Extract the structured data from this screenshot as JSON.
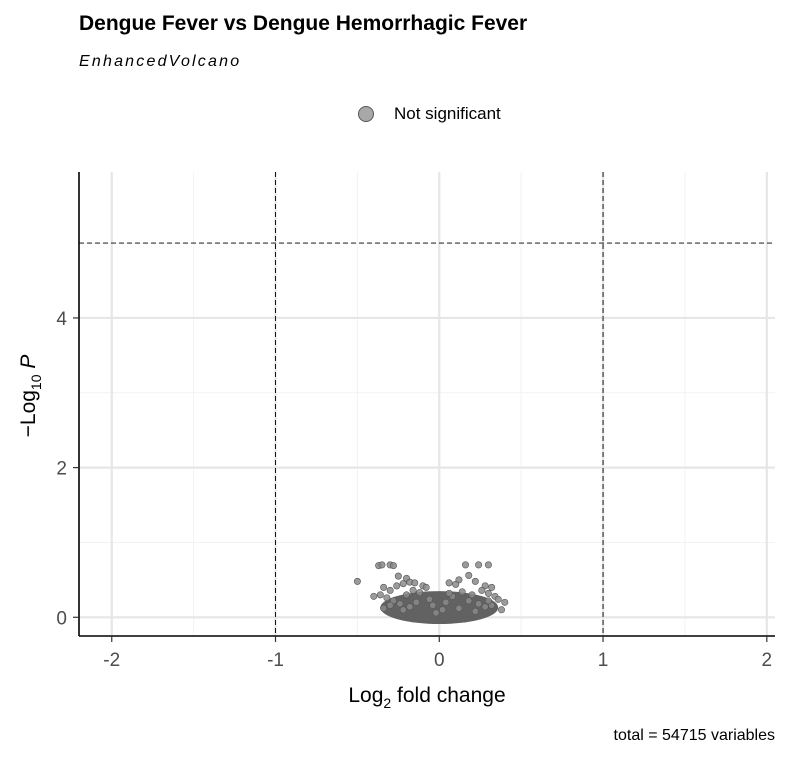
{
  "chart_data": {
    "type": "scatter",
    "title": "Dengue Fever vs Dengue Hemorrhagic Fever",
    "subtitle": "EnhancedVolcano",
    "xlabel": {
      "base": "Log",
      "sub": "2",
      "rest": " fold change"
    },
    "ylabel": {
      "prefix": "−Log",
      "sub": "10",
      "italic": "P"
    },
    "xlim": [
      -2.2,
      2.05
    ],
    "ylim": [
      -0.25,
      5.95
    ],
    "x_ticks": [
      -2,
      -1,
      0,
      1,
      2
    ],
    "y_ticks": [
      0,
      2,
      4
    ],
    "grid": true,
    "legend": {
      "position": "top",
      "entries": [
        {
          "name": "Not significant",
          "color": "#a8a8a8"
        }
      ]
    },
    "cutoffs": {
      "fc": [
        -1,
        1
      ],
      "p_log10": 5
    },
    "caption": "total = 54715 variables",
    "series": [
      {
        "name": "Not significant",
        "color": "#555555",
        "points": [
          [
            -0.5,
            0.48
          ],
          [
            -0.37,
            0.69
          ],
          [
            -0.35,
            0.7
          ],
          [
            -0.3,
            0.7
          ],
          [
            -0.28,
            0.69
          ],
          [
            -0.25,
            0.55
          ],
          [
            -0.2,
            0.52
          ],
          [
            -0.18,
            0.47
          ],
          [
            -0.15,
            0.46
          ],
          [
            -0.1,
            0.42
          ],
          [
            -0.08,
            0.4
          ],
          [
            -0.34,
            0.4
          ],
          [
            -0.3,
            0.36
          ],
          [
            -0.26,
            0.42
          ],
          [
            -0.22,
            0.45
          ],
          [
            -0.36,
            0.3
          ],
          [
            -0.32,
            0.26
          ],
          [
            -0.4,
            0.28
          ],
          [
            -0.28,
            0.22
          ],
          [
            -0.24,
            0.18
          ],
          [
            -0.2,
            0.3
          ],
          [
            -0.16,
            0.36
          ],
          [
            -0.12,
            0.33
          ],
          [
            -0.06,
            0.24
          ],
          [
            -0.04,
            0.16
          ],
          [
            -0.3,
            0.16
          ],
          [
            -0.34,
            0.12
          ],
          [
            -0.22,
            0.1
          ],
          [
            -0.18,
            0.14
          ],
          [
            -0.14,
            0.2
          ],
          [
            0.16,
            0.7
          ],
          [
            0.24,
            0.7
          ],
          [
            0.3,
            0.7
          ],
          [
            0.18,
            0.56
          ],
          [
            0.12,
            0.5
          ],
          [
            0.06,
            0.46
          ],
          [
            0.1,
            0.44
          ],
          [
            0.22,
            0.48
          ],
          [
            0.28,
            0.42
          ],
          [
            0.32,
            0.4
          ],
          [
            0.26,
            0.36
          ],
          [
            0.3,
            0.32
          ],
          [
            0.34,
            0.28
          ],
          [
            0.36,
            0.24
          ],
          [
            0.38,
            0.1
          ],
          [
            0.4,
            0.2
          ],
          [
            0.2,
            0.3
          ],
          [
            0.14,
            0.34
          ],
          [
            0.08,
            0.28
          ],
          [
            0.04,
            0.2
          ],
          [
            0.18,
            0.22
          ],
          [
            0.24,
            0.18
          ],
          [
            0.28,
            0.14
          ],
          [
            0.32,
            0.16
          ],
          [
            0.12,
            0.12
          ],
          [
            0.22,
            0.08
          ],
          [
            0.02,
            0.1
          ],
          [
            -0.02,
            0.06
          ],
          [
            0.06,
            0.32
          ],
          [
            0.3,
            0.22
          ]
        ]
      }
    ]
  }
}
